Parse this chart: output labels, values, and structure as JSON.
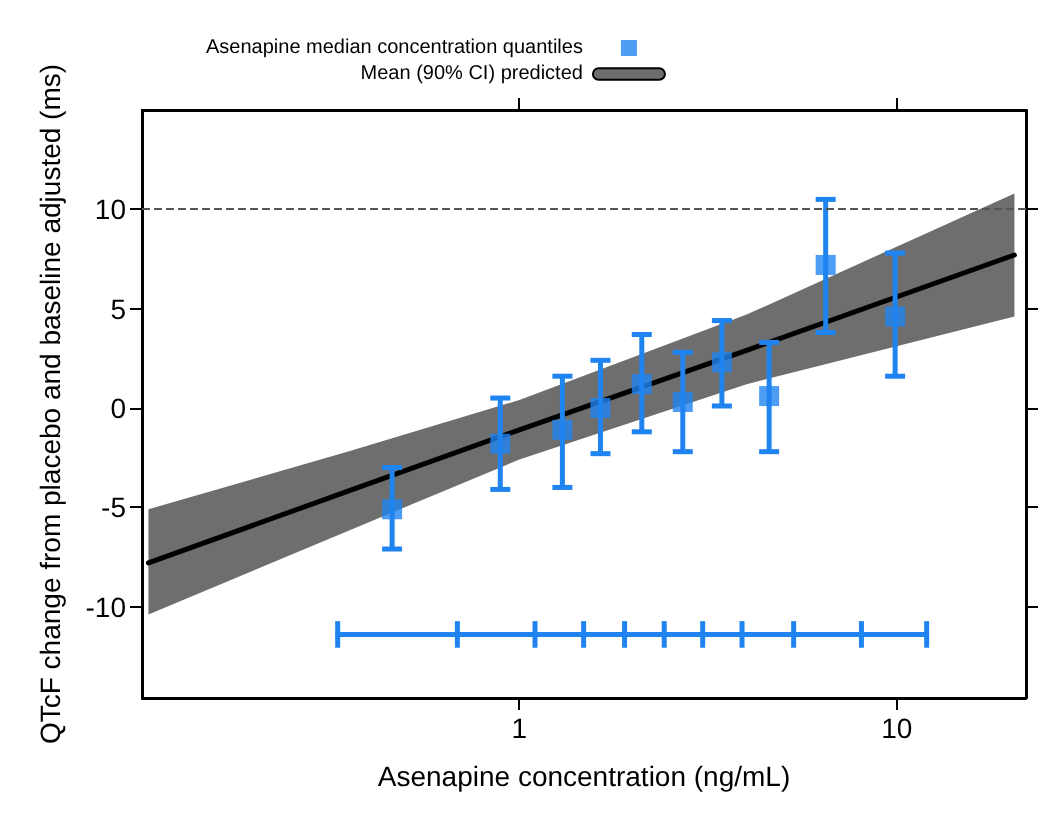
{
  "chart_data": {
    "type": "scatter",
    "xlabel": "Asenapine concentration (ng/mL)",
    "ylabel": "QTcF change from placebo and baseline adjusted (ms)",
    "log": "x",
    "xlim": [
      0.1,
      22
    ],
    "xticks": [
      1,
      10
    ],
    "ylim": [
      -14.6,
      15
    ],
    "yticks": [
      -10,
      -5,
      0,
      5,
      10
    ],
    "legend": "top",
    "ref_lines": [
      {
        "axis": "y",
        "value": 10,
        "color": "#555555",
        "line_style": "dashed"
      }
    ],
    "series": [
      {
        "name": "Asenapine median concentration quantiles",
        "color": "#1f84f0",
        "marker": "square",
        "x": [
          0.46,
          0.89,
          1.3,
          1.64,
          2.11,
          2.71,
          3.44,
          4.59,
          6.48,
          9.9
        ],
        "values": [
          -5.1,
          -1.8,
          -1.1,
          0.0,
          1.2,
          0.3,
          2.3,
          0.6,
          7.2,
          4.6
        ],
        "errors": [
          [
            -7.1,
            -3.0
          ],
          [
            -4.1,
            0.5
          ],
          [
            -4.0,
            1.6
          ],
          [
            -2.3,
            2.4
          ],
          [
            -1.2,
            3.7
          ],
          [
            -2.2,
            2.8
          ],
          [
            0.1,
            4.4
          ],
          [
            -2.2,
            3.3
          ],
          [
            3.8,
            10.5
          ],
          [
            1.6,
            7.8
          ]
        ]
      },
      {
        "name": "Mean (90% CI) predicted",
        "type": "line",
        "color": "#000000",
        "x": [
          0.104,
          0.35,
          1,
          4,
          20.5
        ],
        "values": [
          -7.8,
          -4.2,
          -1.1,
          2.9,
          7.7
        ],
        "lower": [
          -10.4,
          -6.2,
          -2.6,
          1.2,
          4.6
        ],
        "upper": [
          -5.1,
          -2.2,
          0.4,
          4.7,
          10.8
        ]
      },
      {
        "type": "line",
        "color": "#1f84f0",
        "marker": "none",
        "x": [
          0.33,
          0.685,
          1.1,
          1.48,
          1.9,
          2.42,
          3.06,
          3.89,
          5.33,
          8.06,
          12.0
        ],
        "values": [
          -11.4,
          -11.4,
          -11.4,
          -11.4,
          -11.4,
          -11.4,
          -11.4,
          -11.4,
          -11.4,
          -11.4,
          -11.4
        ],
        "errors": [
          0.67,
          0.67,
          0.67,
          0.67,
          0.67,
          0.67,
          0.67,
          0.67,
          0.67,
          0.67,
          0.67
        ]
      }
    ]
  }
}
